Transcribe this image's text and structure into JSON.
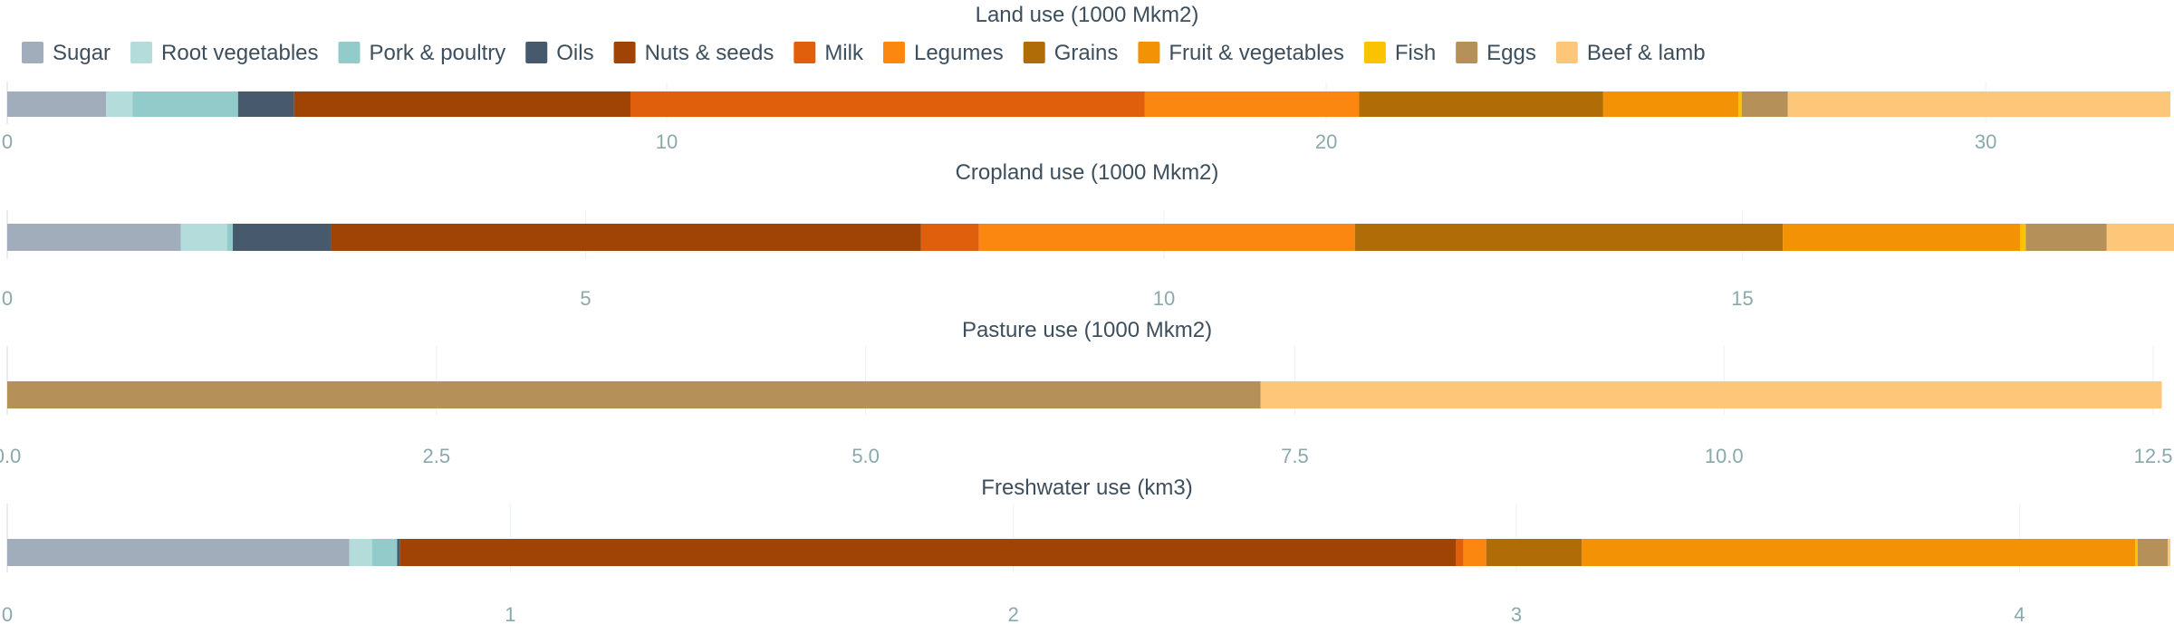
{
  "chart_data": {
    "type": "bar",
    "orientation": "horizontal",
    "stacked": true,
    "legend_position": "top-left",
    "categories": [
      "Sugar",
      "Root vegetables",
      "Pork & poultry",
      "Oils",
      "Nuts & seeds",
      "Milk",
      "Legumes",
      "Grains",
      "Fruit & vegetables",
      "Fish",
      "Eggs",
      "Beef & lamb"
    ],
    "colors": [
      "#a1adba",
      "#b3dcdb",
      "#93cbcb",
      "#475a6d",
      "#a04405",
      "#e05f0c",
      "#fb8711",
      "#b06c07",
      "#f39205",
      "#fbc200",
      "#b59059",
      "#fdc679"
    ],
    "panels": [
      {
        "title": "Land use (1000 Mkm2)",
        "xlim": [
          0,
          32.8
        ],
        "ticks": [
          0,
          10,
          20,
          30
        ],
        "tick_labels": [
          "0",
          "10",
          "20",
          "30"
        ],
        "values": [
          1.5,
          0.4,
          1.6,
          0.85,
          5.1,
          7.8,
          3.25,
          3.7,
          2.05,
          0.05,
          0.7,
          5.8
        ]
      },
      {
        "title": "Cropland use (1000 Mkm2)",
        "xlim": [
          0,
          18.7
        ],
        "ticks": [
          0,
          5,
          10,
          15
        ],
        "tick_labels": [
          "0",
          "5",
          "10",
          "15"
        ],
        "values": [
          1.5,
          0.4,
          0.05,
          0.85,
          5.1,
          0.5,
          3.25,
          3.7,
          2.05,
          0.05,
          0.7,
          0.6
        ]
      },
      {
        "title": "Pasture use (1000 Mkm2)",
        "xlim": [
          0,
          12.6
        ],
        "ticks": [
          0,
          2.5,
          5,
          7.5,
          10,
          12.5
        ],
        "tick_labels": [
          "0.0",
          "2.5",
          "5.0",
          "7.5",
          "10.0",
          "12.5"
        ],
        "values": [
          0,
          0,
          0,
          0,
          0,
          0,
          0,
          0,
          0,
          0,
          7.3,
          5.25
        ]
      },
      {
        "title": "Freshwater use (km3)",
        "xlim": [
          0,
          4.3
        ],
        "ticks": [
          0,
          1,
          2,
          3,
          4
        ],
        "tick_labels": [
          "0",
          "1",
          "2",
          "3",
          "4"
        ],
        "values": [
          0.68,
          0.045,
          0.05,
          0.005,
          2.1,
          0.015,
          0.045,
          0.19,
          1.1,
          0.005,
          0.06,
          0.005
        ]
      }
    ]
  }
}
